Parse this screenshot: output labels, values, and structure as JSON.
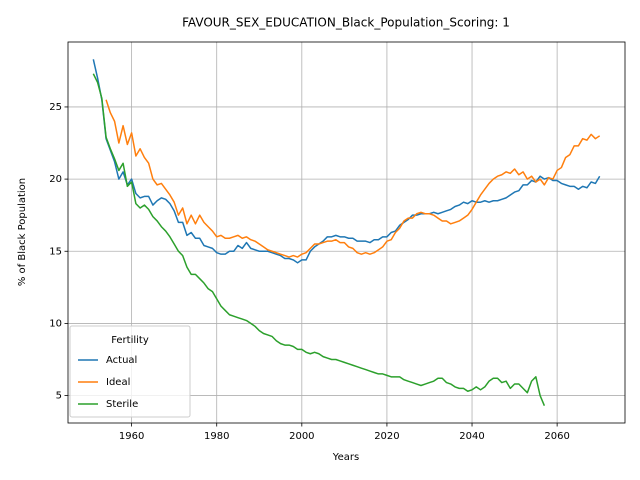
{
  "chart_data": {
    "type": "line",
    "title": "FAVOUR_SEX_EDUCATION_Black_Population_Scoring: 1",
    "x_label": "Years",
    "y_label": "% of Black Population",
    "x": [
      1951,
      1952,
      1953,
      1954,
      1955,
      1956,
      1957,
      1958,
      1959,
      1960,
      1961,
      1962,
      1963,
      1964,
      1965,
      1966,
      1967,
      1968,
      1969,
      1970,
      1971,
      1972,
      1973,
      1974,
      1975,
      1976,
      1977,
      1978,
      1979,
      1980,
      1981,
      1982,
      1983,
      1984,
      1985,
      1986,
      1987,
      1988,
      1989,
      1990,
      1991,
      1992,
      1993,
      1994,
      1995,
      1996,
      1997,
      1998,
      1999,
      2000,
      2001,
      2002,
      2003,
      2004,
      2005,
      2006,
      2007,
      2008,
      2009,
      2010,
      2011,
      2012,
      2013,
      2014,
      2015,
      2016,
      2017,
      2018,
      2019,
      2020,
      2021,
      2022,
      2023,
      2024,
      2025,
      2026,
      2027,
      2028,
      2029,
      2030,
      2031,
      2032,
      2033,
      2034,
      2035,
      2036,
      2037,
      2038,
      2039,
      2040,
      2041,
      2042,
      2043,
      2044,
      2045,
      2046,
      2047,
      2048,
      2049,
      2050,
      2051,
      2052,
      2053,
      2054,
      2055,
      2056,
      2057,
      2058,
      2059,
      2060,
      2061,
      2062,
      2063,
      2064,
      2065,
      2066,
      2067,
      2068,
      2069,
      2070
    ],
    "series": [
      {
        "name": "Actual",
        "color": "#1f77b4",
        "values": [
          28.3,
          27.0,
          25.5,
          22.8,
          22.0,
          21.2,
          20.0,
          20.5,
          19.6,
          20.0,
          19.0,
          18.7,
          18.8,
          18.8,
          18.2,
          18.5,
          18.7,
          18.6,
          18.3,
          17.8,
          17.0,
          17.0,
          16.1,
          16.3,
          15.9,
          15.9,
          15.4,
          15.3,
          15.2,
          14.9,
          14.8,
          14.8,
          15.0,
          15.0,
          15.4,
          15.2,
          15.6,
          15.2,
          15.1,
          15.0,
          15.0,
          15.0,
          14.9,
          14.8,
          14.7,
          14.5,
          14.5,
          14.4,
          14.2,
          14.4,
          14.4,
          15.0,
          15.3,
          15.5,
          15.7,
          16.0,
          16.0,
          16.1,
          16.0,
          16.0,
          15.9,
          15.9,
          15.7,
          15.7,
          15.7,
          15.6,
          15.8,
          15.8,
          16.0,
          16.0,
          16.3,
          16.4,
          16.8,
          17.0,
          17.2,
          17.5,
          17.5,
          17.6,
          17.6,
          17.6,
          17.7,
          17.6,
          17.7,
          17.8,
          17.9,
          18.1,
          18.2,
          18.4,
          18.3,
          18.5,
          18.4,
          18.4,
          18.5,
          18.4,
          18.5,
          18.5,
          18.6,
          18.7,
          18.9,
          19.1,
          19.2,
          19.6,
          19.6,
          19.9,
          19.8,
          20.2,
          20.0,
          20.1,
          19.9,
          19.9,
          19.7,
          19.6,
          19.5,
          19.5,
          19.3,
          19.5,
          19.4,
          19.8,
          19.7,
          20.2
        ]
      },
      {
        "name": "Ideal",
        "color": "#ff7f0e",
        "values": [
          null,
          null,
          null,
          25.5,
          24.6,
          24.0,
          22.5,
          23.7,
          22.4,
          23.2,
          21.6,
          22.1,
          21.5,
          21.1,
          20.0,
          19.6,
          19.7,
          19.3,
          18.9,
          18.4,
          17.5,
          18.0,
          16.9,
          17.5,
          16.9,
          17.5,
          17.0,
          16.7,
          16.4,
          16.0,
          16.1,
          15.9,
          15.9,
          16.0,
          16.1,
          15.9,
          16.0,
          15.8,
          15.7,
          15.5,
          15.3,
          15.1,
          15.0,
          14.9,
          14.8,
          14.7,
          14.6,
          14.7,
          14.6,
          14.8,
          14.9,
          15.2,
          15.5,
          15.5,
          15.6,
          15.7,
          15.7,
          15.8,
          15.6,
          15.6,
          15.3,
          15.2,
          14.9,
          14.8,
          14.9,
          14.8,
          14.9,
          15.1,
          15.3,
          15.7,
          15.8,
          16.3,
          16.6,
          17.1,
          17.3,
          17.3,
          17.6,
          17.7,
          17.6,
          17.6,
          17.5,
          17.3,
          17.1,
          17.1,
          16.9,
          17.0,
          17.1,
          17.3,
          17.5,
          17.9,
          18.4,
          18.9,
          19.3,
          19.7,
          20.0,
          20.2,
          20.3,
          20.5,
          20.4,
          20.7,
          20.3,
          20.5,
          20.0,
          20.2,
          19.8,
          20.0,
          19.6,
          20.1,
          20.0,
          20.6,
          20.8,
          21.5,
          21.7,
          22.3,
          22.3,
          22.8,
          22.7,
          23.1,
          22.8,
          23.0
        ]
      },
      {
        "name": "Sterile",
        "color": "#2ca02c",
        "values": [
          27.3,
          26.7,
          25.6,
          22.9,
          22.1,
          21.4,
          20.6,
          21.1,
          19.5,
          19.8,
          18.3,
          18.0,
          18.2,
          17.9,
          17.4,
          17.1,
          16.7,
          16.4,
          16.0,
          15.5,
          15.0,
          14.7,
          13.9,
          13.4,
          13.4,
          13.1,
          12.8,
          12.4,
          12.2,
          11.7,
          11.2,
          10.9,
          10.6,
          10.5,
          10.4,
          10.3,
          10.2,
          10.0,
          9.8,
          9.5,
          9.3,
          9.2,
          9.1,
          8.8,
          8.6,
          8.5,
          8.5,
          8.4,
          8.2,
          8.2,
          8.0,
          7.9,
          8.0,
          7.9,
          7.7,
          7.6,
          7.5,
          7.5,
          7.4,
          7.3,
          7.2,
          7.1,
          7.0,
          6.9,
          6.8,
          6.7,
          6.6,
          6.5,
          6.5,
          6.4,
          6.3,
          6.3,
          6.3,
          6.1,
          6.0,
          5.9,
          5.8,
          5.7,
          5.8,
          5.9,
          6.0,
          6.2,
          6.2,
          5.9,
          5.8,
          5.6,
          5.5,
          5.5,
          5.3,
          5.4,
          5.6,
          5.4,
          5.6,
          6.0,
          6.2,
          6.2,
          5.9,
          6.0,
          5.5,
          5.8,
          5.8,
          5.5,
          5.2,
          6.0,
          6.3,
          5.0,
          4.3,
          null,
          null,
          null,
          null,
          null,
          null,
          null,
          null,
          null,
          null,
          null,
          null,
          null
        ]
      }
    ],
    "xlim": [
      1945.05,
      2075.95
    ],
    "xticks": [
      1960,
      1980,
      2000,
      2020,
      2040,
      2060
    ],
    "ylim": [
      3.1,
      29.5
    ],
    "yticks": [
      5,
      10,
      15,
      20,
      25
    ],
    "grid": true,
    "legend_title": "Fertility",
    "legend_position": "lower left"
  }
}
